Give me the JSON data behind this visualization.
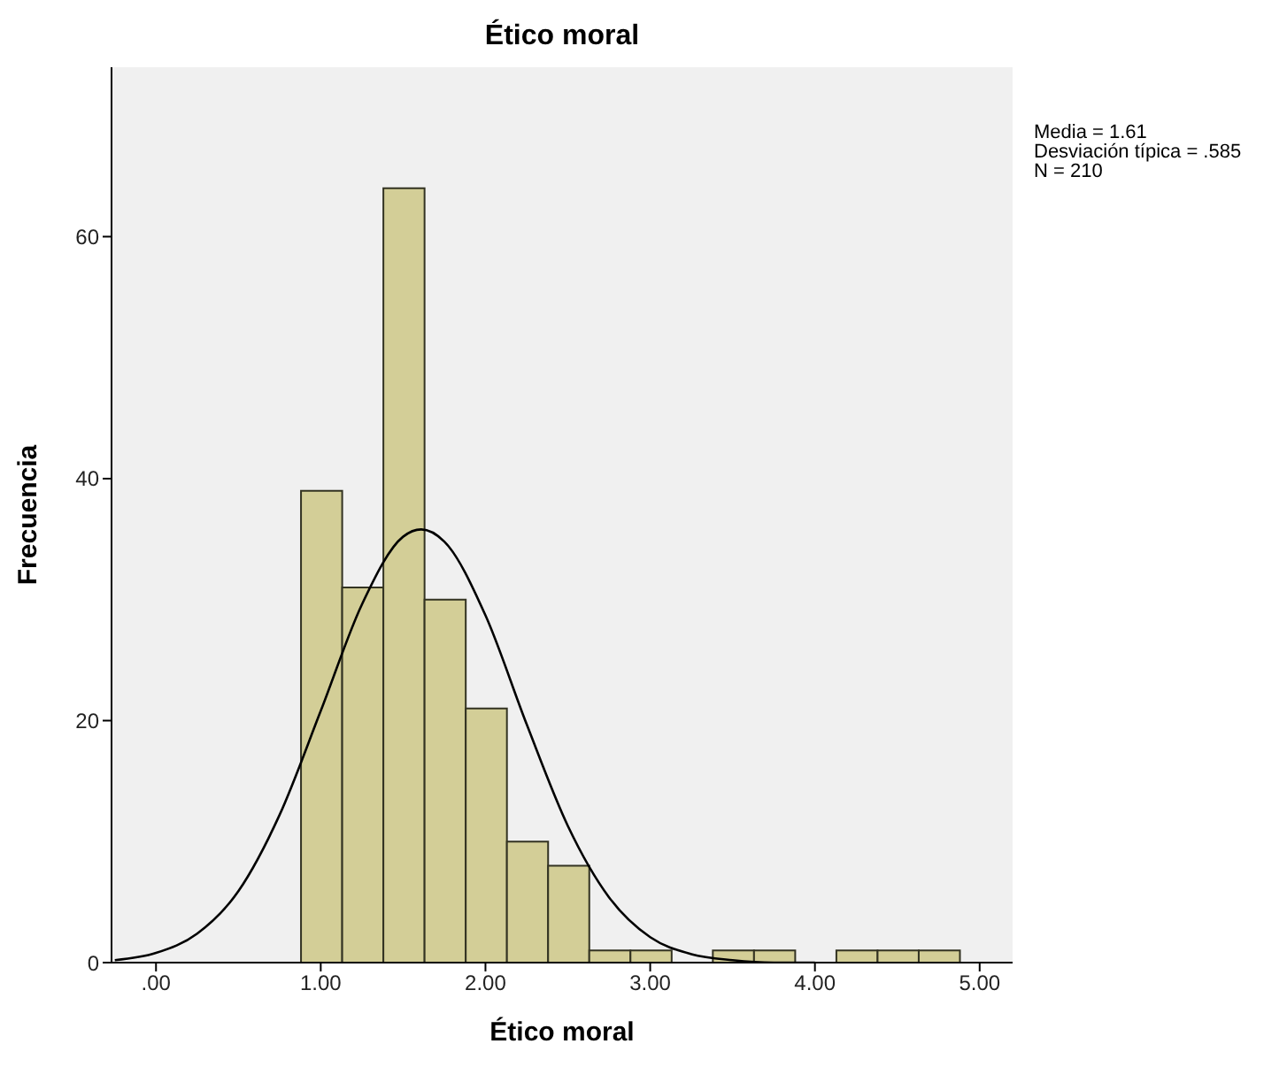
{
  "chart_data": {
    "type": "histogram",
    "title": "Ético moral",
    "xlabel": "Ético moral",
    "ylabel": "Frecuencia",
    "bins": [
      0.875,
      1.125,
      1.375,
      1.625,
      1.875,
      2.125,
      2.375,
      2.625,
      2.875,
      3.125,
      3.375,
      3.625,
      3.875,
      4.125,
      4.375,
      4.625,
      4.875
    ],
    "values": [
      39,
      31,
      64,
      30,
      21,
      10,
      8,
      1,
      1,
      0,
      1,
      1,
      0,
      1,
      1,
      1
    ],
    "color": "#d3ce97",
    "series": [
      {
        "type": "line",
        "color": "#000000",
        "x": [
          -0.25,
          0,
          0.25,
          0.5,
          0.75,
          1,
          1.25,
          1.5,
          1.61,
          1.75,
          2,
          2.25,
          2.5,
          2.75,
          3,
          3.25,
          3.5,
          3.75,
          4
        ],
        "values": [
          0.2,
          0.8,
          2.4,
          5.9,
          12.2,
          20.8,
          29.6,
          35.2,
          35.8,
          34.8,
          28.7,
          19.7,
          11.3,
          5.4,
          2.1,
          0.7,
          0.2,
          0,
          0
        ]
      }
    ],
    "marker": "none",
    "line_style": "solid",
    "xlim": [
      -0.27,
      5.2
    ],
    "xticks": [
      {
        "value": 0,
        "label": ".00"
      },
      {
        "value": 1,
        "label": "1.00"
      },
      {
        "value": 2,
        "label": "2.00"
      },
      {
        "value": 3,
        "label": "3.00"
      },
      {
        "value": 4,
        "label": "4.00"
      },
      {
        "value": 5,
        "label": "5.00"
      }
    ],
    "ylim": [
      0,
      74
    ],
    "yticks": [
      0,
      20,
      40,
      60
    ],
    "annotations": [
      "Media = 1.61",
      "Desviación típica = .585",
      "N = 210"
    ]
  }
}
